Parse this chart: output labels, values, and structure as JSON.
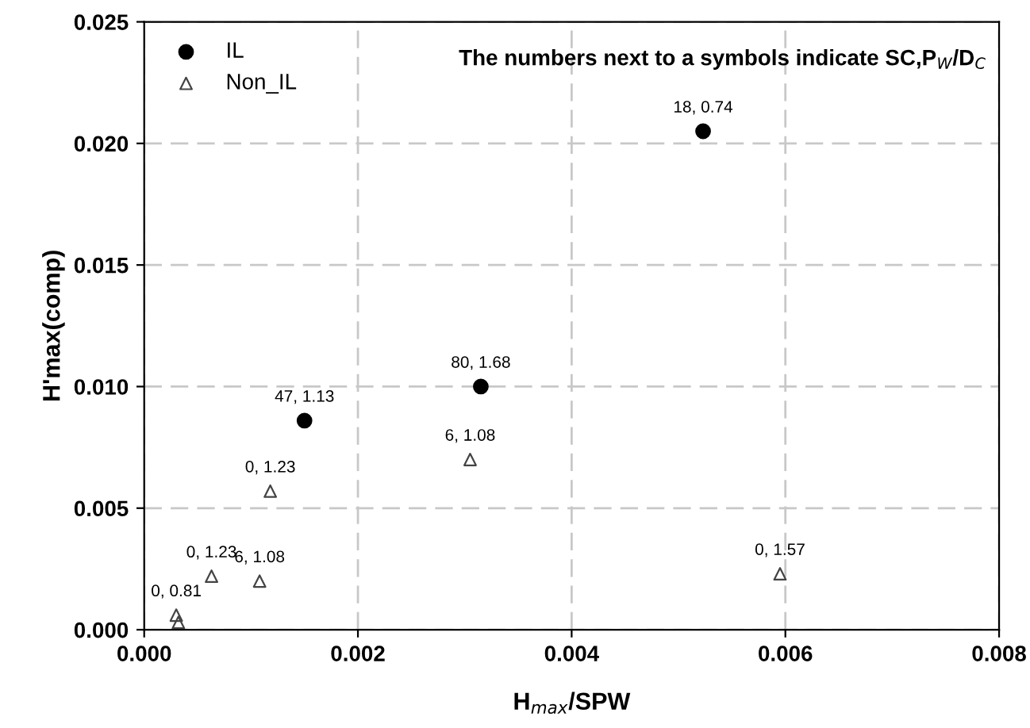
{
  "chart_data": {
    "type": "scatter",
    "xlabel": "H$_{max}$/SPW",
    "ylabel": "H'max(comp)",
    "annotations": [
      "The numbers next to a symbols indicate SC,P$_{W}$/D$_{C}$"
    ],
    "series": [
      {
        "name": "IL",
        "color": "#000000",
        "marker": "circle",
        "x": [
          0.00523,
          0.00315,
          0.0015
        ],
        "values": [
          0.0205,
          0.01,
          0.0086
        ],
        "value_labels": [
          "18, 0.74",
          "80, 1.68",
          "47, 1.13"
        ]
      },
      {
        "name": "Non_IL",
        "color": "#444444",
        "marker": "triangle",
        "x": [
          0.00595,
          0.00305,
          0.00118,
          0.00108,
          0.00063,
          0.0003,
          0.00032
        ],
        "values": [
          0.0023,
          0.007,
          0.0057,
          0.002,
          0.0022,
          0.0006,
          0.0003
        ],
        "value_labels": [
          "0, 1.57",
          "6, 1.08",
          "0, 1.23",
          "6, 1.08",
          "0, 1.23",
          "0, 0.81",
          null
        ]
      }
    ],
    "xlim": [
      0,
      0.008
    ],
    "xticks": [
      {
        "value": 0,
        "label": "0.000"
      },
      0.002,
      0.004,
      0.006,
      0.008
    ],
    "ylim": [
      0,
      0.025
    ],
    "yticks": [
      {
        "value": 0,
        "label": "0.000"
      },
      0.005,
      {
        "value": 0.01,
        "label": "0.010"
      },
      0.015,
      {
        "value": 0.02,
        "label": "0.020"
      },
      0.025
    ],
    "grid": true,
    "legend": "top left"
  }
}
